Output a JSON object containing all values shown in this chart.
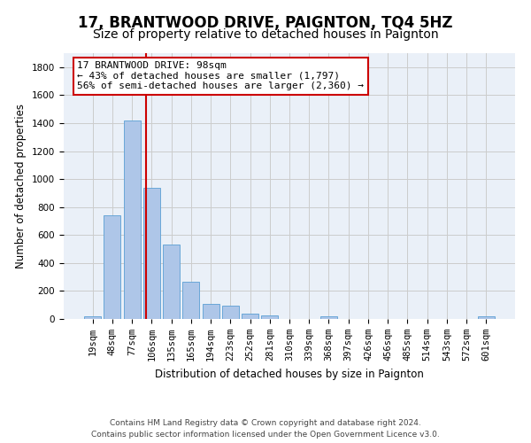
{
  "title": "17, BRANTWOOD DRIVE, PAIGNTON, TQ4 5HZ",
  "subtitle": "Size of property relative to detached houses in Paignton",
  "xlabel": "Distribution of detached houses by size in Paignton",
  "ylabel": "Number of detached properties",
  "categories": [
    "19sqm",
    "48sqm",
    "77sqm",
    "106sqm",
    "135sqm",
    "165sqm",
    "194sqm",
    "223sqm",
    "252sqm",
    "281sqm",
    "310sqm",
    "339sqm",
    "368sqm",
    "397sqm",
    "426sqm",
    "456sqm",
    "485sqm",
    "514sqm",
    "543sqm",
    "572sqm",
    "601sqm"
  ],
  "values": [
    22,
    740,
    1420,
    935,
    530,
    265,
    105,
    95,
    38,
    28,
    0,
    0,
    18,
    0,
    0,
    0,
    0,
    0,
    0,
    0,
    18
  ],
  "bar_color": "#aec6e8",
  "bar_edge_color": "#5a9fd4",
  "vline_color": "#cc0000",
  "annotation_text": "17 BRANTWOOD DRIVE: 98sqm\n← 43% of detached houses are smaller (1,797)\n56% of semi-detached houses are larger (2,360) →",
  "annotation_box_color": "#ffffff",
  "annotation_box_edge": "#cc0000",
  "ylim": [
    0,
    1900
  ],
  "yticks": [
    0,
    200,
    400,
    600,
    800,
    1000,
    1200,
    1400,
    1600,
    1800
  ],
  "grid_color": "#cccccc",
  "bg_color": "#eaf0f8",
  "footer": "Contains HM Land Registry data © Crown copyright and database right 2024.\nContains public sector information licensed under the Open Government Licence v3.0.",
  "title_fontsize": 12,
  "subtitle_fontsize": 10,
  "axis_label_fontsize": 8.5,
  "tick_fontsize": 7.5,
  "annotation_fontsize": 8,
  "footer_fontsize": 6.5
}
